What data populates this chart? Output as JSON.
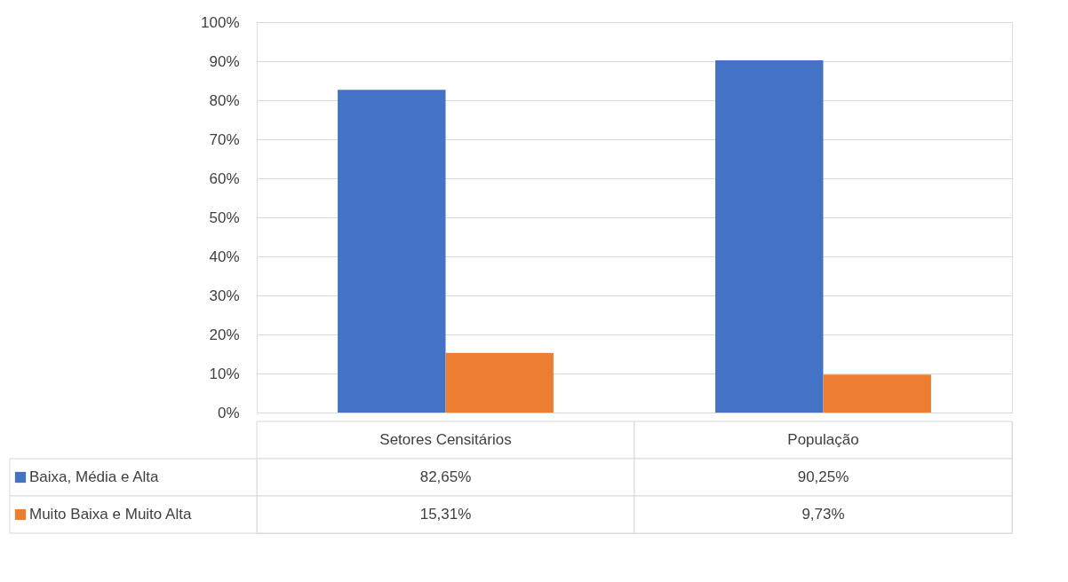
{
  "chart_data": {
    "type": "bar",
    "categories": [
      "Setores Censitários",
      "População"
    ],
    "series": [
      {
        "name": "Baixa, Média e Alta",
        "color": "#4472c4",
        "values": [
          82.65,
          90.25
        ],
        "value_labels": [
          "82,65%",
          "90,25%"
        ]
      },
      {
        "name": "Muito Baixa e Muito Alta",
        "color": "#ed7d31",
        "values": [
          15.31,
          9.73
        ],
        "value_labels": [
          "15,31%",
          "9,73%"
        ]
      }
    ],
    "ylim": [
      0,
      100
    ],
    "yticks": [
      {
        "value": 0,
        "label": "0%"
      },
      {
        "value": 10,
        "label": "10%"
      },
      {
        "value": 20,
        "label": "20%"
      },
      {
        "value": 30,
        "label": "30%"
      },
      {
        "value": 40,
        "label": "40%"
      },
      {
        "value": 50,
        "label": "50%"
      },
      {
        "value": 60,
        "label": "60%"
      },
      {
        "value": 70,
        "label": "70%"
      },
      {
        "value": 80,
        "label": "80%"
      },
      {
        "value": 90,
        "label": "90%"
      },
      {
        "value": 100,
        "label": "100%"
      }
    ],
    "grid": "y",
    "legend": "bottom"
  }
}
